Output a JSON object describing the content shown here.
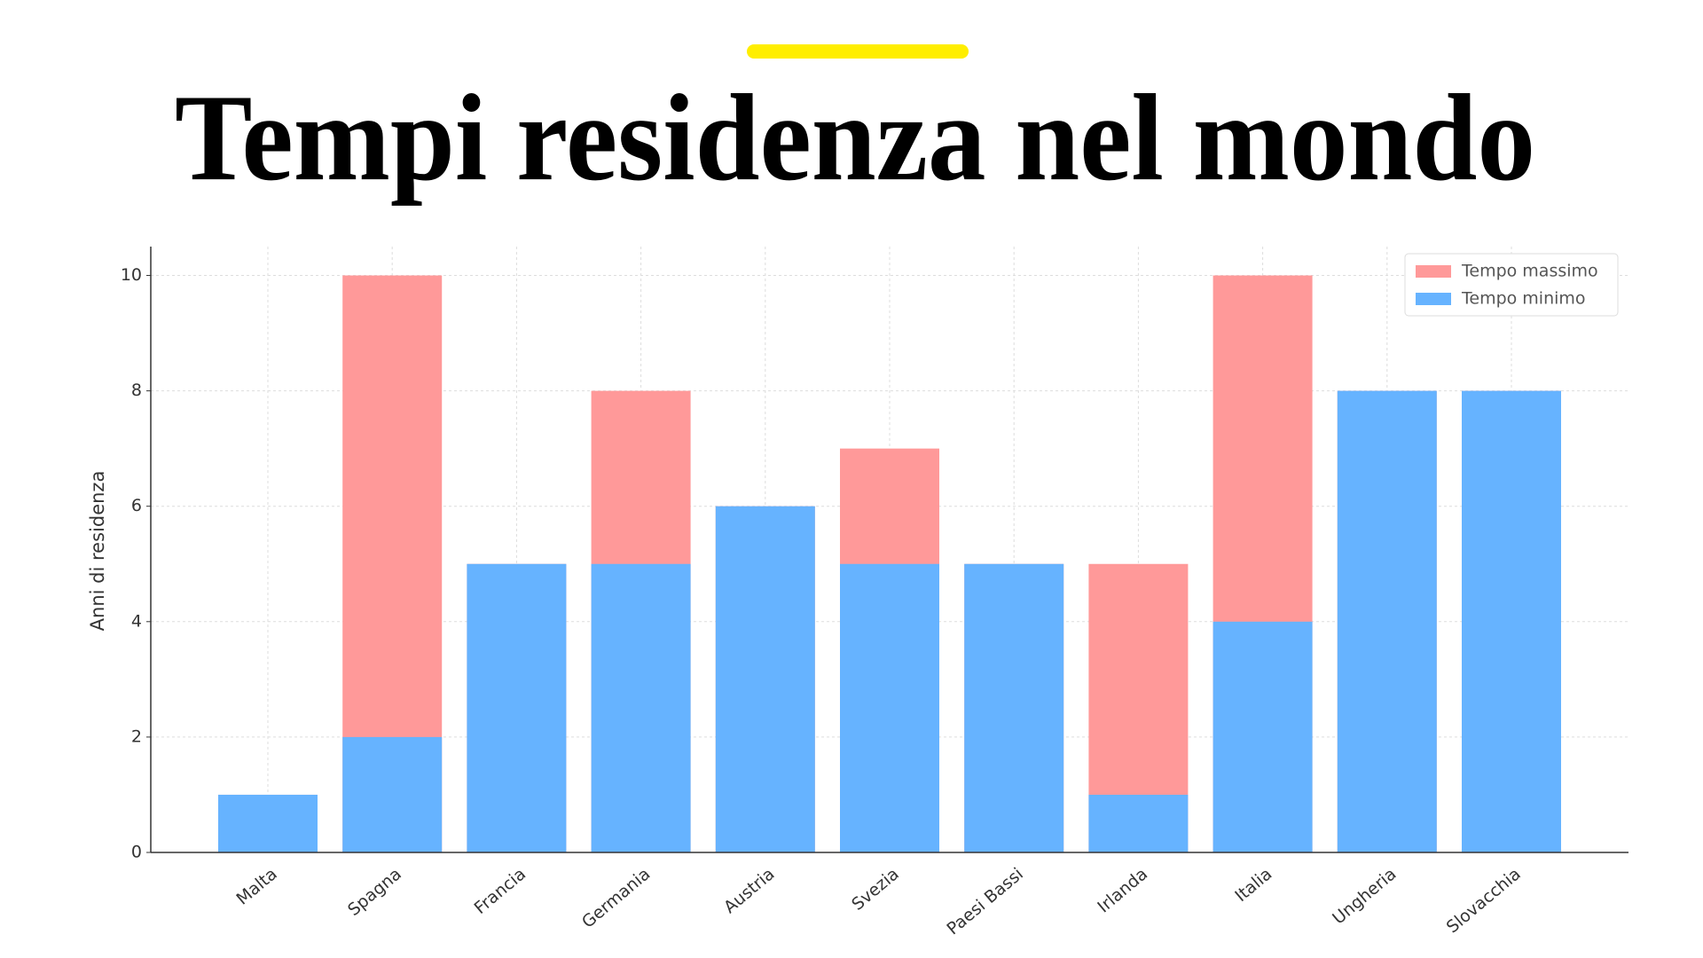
{
  "chart_data": {
    "type": "bar",
    "title": "Tempi residenza nel mondo",
    "y_label": "Anni di residenza",
    "categories": [
      "Malta",
      "Spagna",
      "Francia",
      "Germania",
      "Austria",
      "Svezia",
      "Paesi Bassi",
      "Irlanda",
      "Italia",
      "Ungheria",
      "Slovacchia"
    ],
    "series": [
      {
        "name": "Tempo massimo",
        "color": "#ff9999",
        "values": [
          1,
          10,
          5,
          8,
          6,
          7,
          5,
          5,
          10,
          8,
          8
        ]
      },
      {
        "name": "Tempo minimo",
        "color": "#66b3ff",
        "values": [
          1,
          2,
          5,
          5,
          6,
          5,
          5,
          1,
          4,
          8,
          8
        ]
      }
    ],
    "ylim": [
      0,
      10.5
    ],
    "yticks": [
      0,
      2,
      4,
      6,
      8,
      10
    ],
    "grid": true,
    "legend": "upper right"
  }
}
